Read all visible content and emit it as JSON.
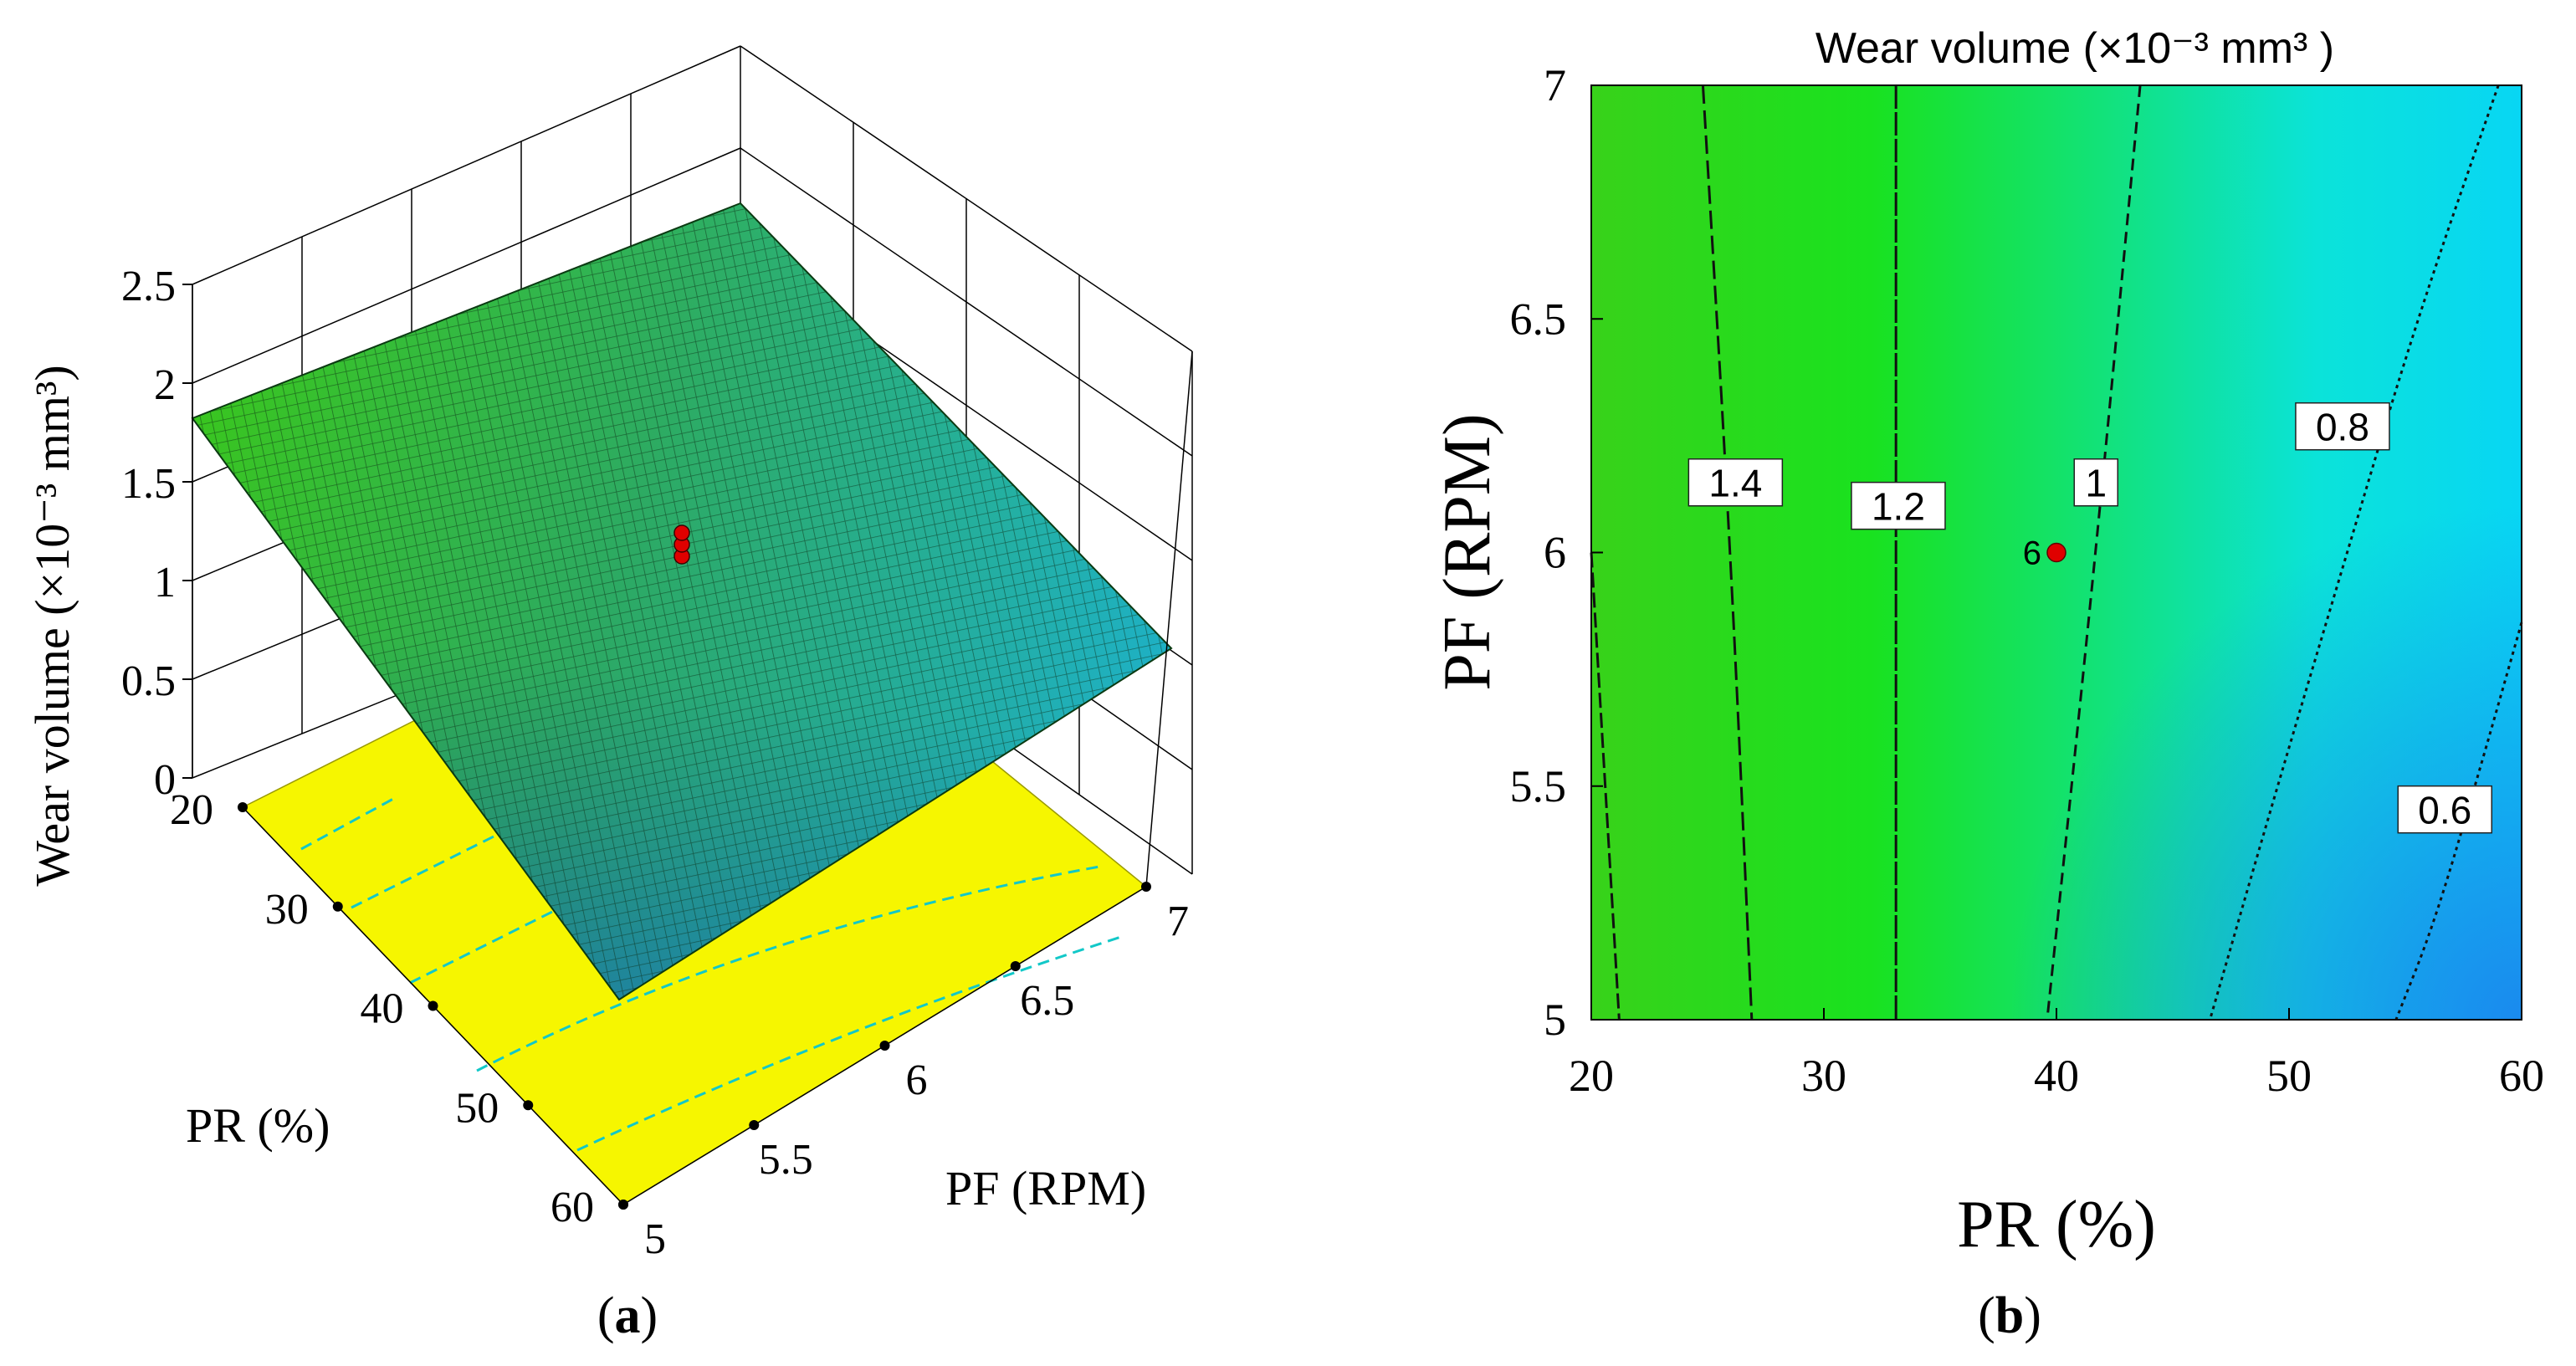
{
  "panels": {
    "a": {
      "caption_open": "(",
      "caption_letter": "a",
      "caption_close": ")"
    },
    "b": {
      "caption_open": "(",
      "caption_letter": "b",
      "caption_close": ")"
    }
  },
  "colors": {
    "surface_high": "#3ecf1a",
    "surface_mid": "#22b8a6",
    "surface_low": "#1f8fd0",
    "floor": "#f6f600",
    "contour_high": "#45d91a",
    "contour_low": "#08a3f0",
    "design_point": "#e00000"
  },
  "chart_data": [
    {
      "type": "surface",
      "panel": "a",
      "xlabel": "PF (RPM)",
      "ylabel": "PR (%)",
      "zlabel": "Wear volume (×10⁻³ mm³)",
      "x_ticks": [
        5,
        5.5,
        6,
        6.5,
        7
      ],
      "x_tick_labels": [
        "5",
        "5.5",
        "6",
        "6.5",
        "7"
      ],
      "y_ticks": [
        20,
        30,
        40,
        50,
        60
      ],
      "y_tick_labels": [
        "20",
        "30",
        "40",
        "50",
        "60"
      ],
      "z_ticks": [
        0,
        0.5,
        1,
        1.5,
        2,
        2.5
      ],
      "z_tick_labels": [
        "0",
        "0.5",
        "1",
        "1.5",
        "2",
        "2.5"
      ],
      "xlim": [
        5,
        7
      ],
      "ylim": [
        20,
        60
      ],
      "zlim": [
        0,
        2.5
      ],
      "corner_values": [
        {
          "PR": 20,
          "PF": 5,
          "z": 1.52
        },
        {
          "PR": 20,
          "PF": 7,
          "z": 1.4
        },
        {
          "PR": 60,
          "PF": 5,
          "z": 0.42
        },
        {
          "PR": 60,
          "PF": 7,
          "z": 0.78
        }
      ],
      "design_points": [
        {
          "PR": 40,
          "PF": 6,
          "z": 0.95,
          "count": 6
        }
      ]
    },
    {
      "type": "contour",
      "panel": "b",
      "title": "Wear volume (×10⁻³ mm³ )",
      "xlabel": "PR (%)",
      "ylabel": "PF (RPM)",
      "xlim": [
        20,
        60
      ],
      "ylim": [
        5,
        7
      ],
      "x_ticks": [
        20,
        30,
        40,
        50,
        60
      ],
      "x_tick_labels": [
        "20",
        "30",
        "40",
        "50",
        "60"
      ],
      "y_ticks": [
        5,
        5.5,
        6,
        6.5,
        7
      ],
      "y_tick_labels": [
        "5",
        "5.5",
        "6",
        "6.5",
        "7"
      ],
      "contours": [
        {
          "level": 1.6,
          "label": "",
          "points": [
            [
              20,
              6.0
            ],
            [
              21.2,
              5.0
            ]
          ]
        },
        {
          "level": 1.4,
          "label": "1.4",
          "points": [
            [
              24.8,
              7.0
            ],
            [
              26.0,
              6.0
            ],
            [
              26.9,
              5.0
            ]
          ]
        },
        {
          "level": 1.2,
          "label": "1.2",
          "points": [
            [
              33.1,
              7.0
            ],
            [
              33.1,
              5.0
            ]
          ]
        },
        {
          "level": 1,
          "label": "1",
          "points": [
            [
              43.6,
              7.0
            ],
            [
              41.7,
              6.0
            ],
            [
              39.6,
              5.0
            ]
          ]
        },
        {
          "level": 0.8,
          "label": "0.8",
          "points": [
            [
              59.0,
              7.0
            ],
            [
              55.5,
              6.5
            ],
            [
              52.5,
              6.0
            ],
            [
              49.5,
              5.5
            ],
            [
              46.6,
              5.0
            ]
          ]
        },
        {
          "level": 0.6,
          "label": "0.6",
          "points": [
            [
              60.0,
              5.85
            ],
            [
              58.0,
              5.5
            ],
            [
              56.2,
              5.2
            ],
            [
              54.6,
              5.0
            ]
          ]
        }
      ],
      "design_points": [
        {
          "PR": 40,
          "PF": 6,
          "count": "6"
        }
      ]
    }
  ]
}
